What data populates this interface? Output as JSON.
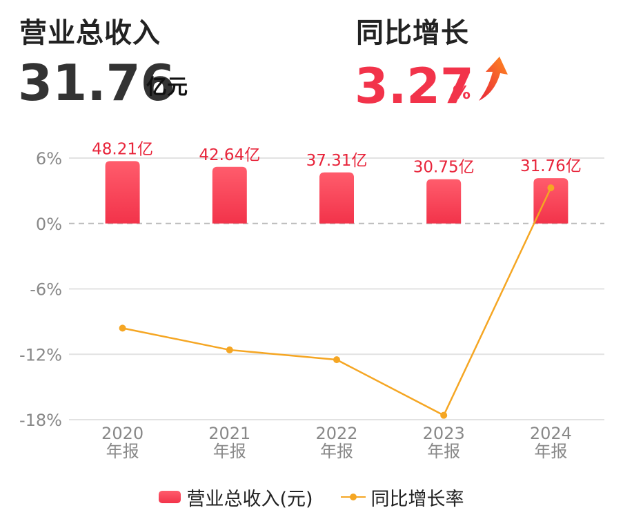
{
  "kpis": {
    "revenue": {
      "label": "营业总收入",
      "value": "31.76",
      "unit": "亿元"
    },
    "growth": {
      "label": "同比增长",
      "value": "3.27",
      "unit": "%"
    }
  },
  "legend": {
    "revenue": "营业总收入(元)",
    "growth": "同比增长率"
  },
  "colors": {
    "bar_top": "#ff5c6c",
    "bar_bottom": "#f2334a",
    "line": "#f5a623",
    "bar_label": "#e8243a",
    "growth_value": "#f2334a",
    "title": "#222222",
    "axis_text": "#888888"
  },
  "chart_data": {
    "type": "bar+line",
    "categories": [
      "2020",
      "2021",
      "2022",
      "2023",
      "2024"
    ],
    "category_sublabel": "年报",
    "series": [
      {
        "name": "营业总收入(元)",
        "type": "bar",
        "values": [
          48.21,
          42.64,
          37.31,
          30.75,
          31.76
        ],
        "labels": [
          "48.21亿",
          "42.64亿",
          "37.31亿",
          "30.75亿",
          "31.76亿"
        ]
      },
      {
        "name": "同比增长率",
        "type": "line",
        "values": [
          -9.6,
          -11.6,
          -12.5,
          -17.6,
          3.27
        ]
      }
    ],
    "y_axis": {
      "ticks": [
        6,
        0,
        -6,
        -12,
        -18
      ],
      "tick_labels": [
        "6%",
        "0%",
        "-6%",
        "-12%",
        "-18%"
      ],
      "range": [
        -18,
        6
      ]
    },
    "bar_scale_max": 60
  }
}
